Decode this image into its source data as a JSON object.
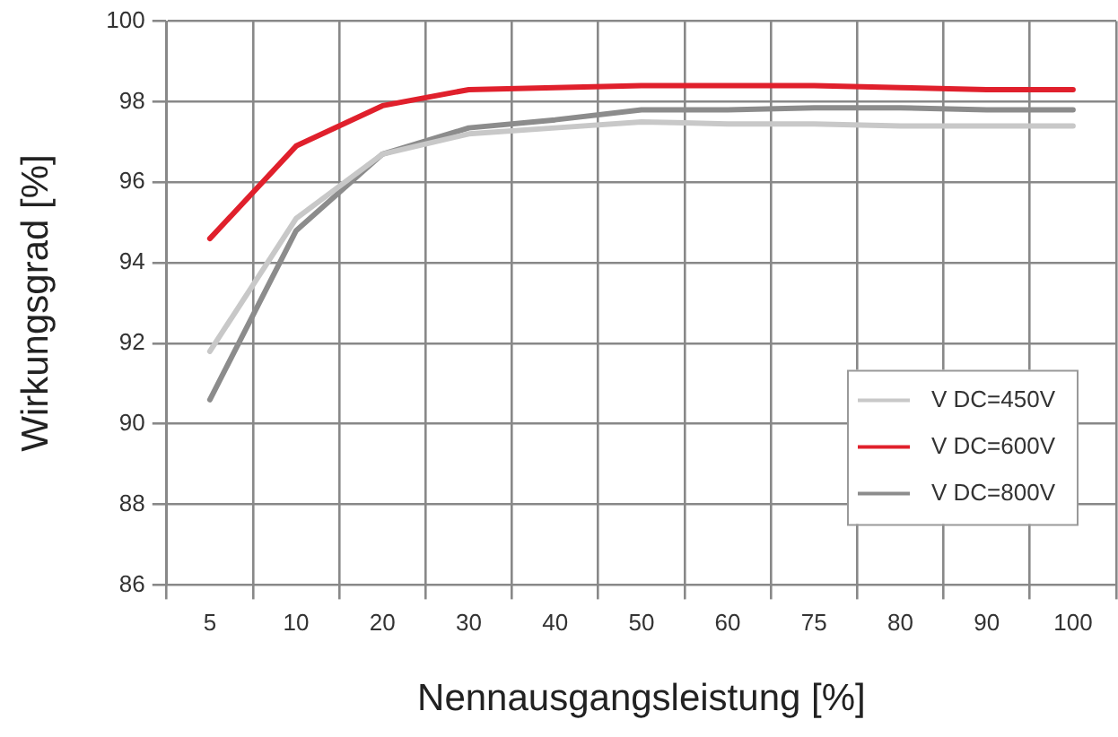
{
  "chart_data": {
    "type": "line",
    "xlabel": "Nennausgangsleistung [%]",
    "ylabel": "Wirkungsgrad [%]",
    "categories": [
      "5",
      "10",
      "20",
      "30",
      "40",
      "50",
      "60",
      "75",
      "80",
      "90",
      "100"
    ],
    "series": [
      {
        "name": "V DC=450V",
        "color": "#c8c8c8",
        "values": [
          91.8,
          95.1,
          96.7,
          97.2,
          97.35,
          97.5,
          97.45,
          97.45,
          97.4,
          97.4,
          97.4
        ]
      },
      {
        "name": "V DC=600V",
        "color": "#e0202c",
        "values": [
          94.6,
          96.9,
          97.9,
          98.3,
          98.35,
          98.4,
          98.4,
          98.4,
          98.35,
          98.3,
          98.3
        ]
      },
      {
        "name": "V DC=800V",
        "color": "#8c8c8c",
        "values": [
          90.6,
          94.8,
          96.7,
          97.35,
          97.55,
          97.8,
          97.8,
          97.85,
          97.85,
          97.8,
          97.8
        ]
      }
    ],
    "ylim": [
      86,
      100
    ],
    "yticks": [
      86,
      88,
      90,
      92,
      94,
      96,
      98,
      100
    ],
    "grid": true,
    "legend": "bottom right",
    "marker": "none",
    "line_style": "solid"
  }
}
